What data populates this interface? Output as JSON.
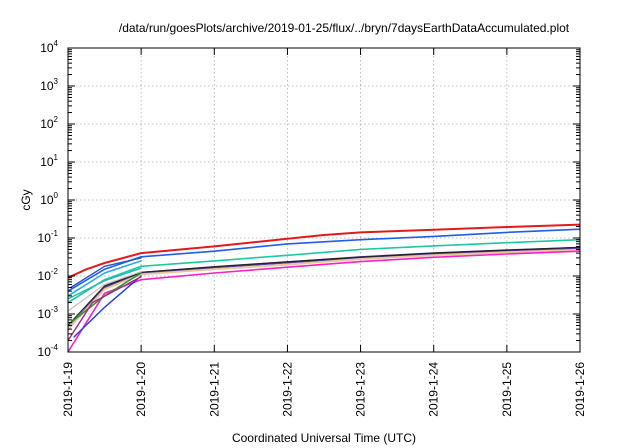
{
  "chart_data": {
    "type": "line",
    "title": "/data/run/goesPlots/archive/2019-01-25/flux/../bryn/7daysEarthDataAccumulated.plot",
    "xlabel": "Coordinated Universal Time (UTC)",
    "ylabel": "cGy",
    "y_scale": "log",
    "grid": true,
    "ylim": [
      0.0001,
      10000
    ],
    "y_ticks": [
      {
        "base": "10",
        "exp": "-4",
        "value": 0.0001
      },
      {
        "base": "10",
        "exp": "-3",
        "value": 0.001
      },
      {
        "base": "10",
        "exp": "-2",
        "value": 0.01
      },
      {
        "base": "10",
        "exp": "-1",
        "value": 0.1
      },
      {
        "base": "10",
        "exp": "0",
        "value": 1
      },
      {
        "base": "10",
        "exp": "1",
        "value": 10
      },
      {
        "base": "10",
        "exp": "2",
        "value": 100
      },
      {
        "base": "10",
        "exp": "3",
        "value": 1000
      },
      {
        "base": "10",
        "exp": "4",
        "value": 10000
      }
    ],
    "x_ticks": [
      "2019-1-19",
      "2019-1-20",
      "2019-1-21",
      "2019-1-22",
      "2019-1-23",
      "2019-1-24",
      "2019-1-25",
      "2019-1-26"
    ],
    "xlim": [
      "2019-01-19",
      "2019-01-26"
    ],
    "series": [
      {
        "color": "#e31a1c",
        "width": 2,
        "x": [
          "2019-01-19",
          "2019-01-19T06:00",
          "2019-01-19T12:00",
          "2019-01-20",
          "2019-01-21",
          "2019-01-22",
          "2019-01-22T12:00",
          "2019-01-23",
          "2019-01-24",
          "2019-01-25",
          "2019-01-26"
        ],
        "y": [
          0.009,
          0.015,
          0.022,
          0.04,
          0.06,
          0.095,
          0.12,
          0.14,
          0.165,
          0.195,
          0.225
        ]
      },
      {
        "color": "#1f5ee8",
        "width": 1.6,
        "x": [
          "2019-01-19",
          "2019-01-19T12:00",
          "2019-01-20",
          "2019-01-21",
          "2019-01-22",
          "2019-01-23",
          "2019-01-24",
          "2019-01-25",
          "2019-01-26"
        ],
        "y": [
          0.004,
          0.015,
          0.032,
          0.045,
          0.07,
          0.09,
          0.11,
          0.14,
          0.17
        ]
      },
      {
        "color": "#1ec8a0",
        "width": 1.6,
        "x": [
          "2019-01-19",
          "2019-01-19T12:00",
          "2019-01-20",
          "2019-01-21",
          "2019-01-22",
          "2019-01-23",
          "2019-01-24",
          "2019-01-25",
          "2019-01-26"
        ],
        "y": [
          0.002,
          0.008,
          0.018,
          0.025,
          0.035,
          0.05,
          0.062,
          0.075,
          0.09
        ]
      },
      {
        "color": "#5a3fa0",
        "width": 2.4,
        "x": [
          "2019-01-19",
          "2019-01-19T12:00",
          "2019-01-20",
          "2019-01-21",
          "2019-01-22",
          "2019-01-23",
          "2019-01-24",
          "2019-01-25",
          "2019-01-26"
        ],
        "y": [
          0.0004,
          0.005,
          0.012,
          0.017,
          0.023,
          0.031,
          0.039,
          0.047,
          0.055
        ]
      },
      {
        "color": "#222222",
        "width": 1.2,
        "x": [
          "2019-01-19",
          "2019-01-19T12:00",
          "2019-01-20",
          "2019-01-21",
          "2019-01-22",
          "2019-01-23",
          "2019-01-24",
          "2019-01-25",
          "2019-01-26"
        ],
        "y": [
          0.0005,
          0.0055,
          0.0125,
          0.0175,
          0.0235,
          0.0315,
          0.04,
          0.048,
          0.057
        ]
      },
      {
        "color": "#e8c8a0",
        "width": 2,
        "x": [
          "2019-01-19",
          "2019-01-19T12:00",
          "2019-01-20",
          "2019-01-21",
          "2019-01-22",
          "2019-01-23",
          "2019-01-24",
          "2019-01-25",
          "2019-01-26"
        ],
        "y": [
          0.0004,
          0.0045,
          0.011,
          0.015,
          0.02,
          0.028,
          0.035,
          0.042,
          0.049
        ]
      },
      {
        "color": "#ff1ecc",
        "width": 1.6,
        "x": [
          "2019-01-19",
          "2019-01-19T12:00",
          "2019-01-20",
          "2019-01-21",
          "2019-01-22",
          "2019-01-23",
          "2019-01-24",
          "2019-01-25",
          "2019-01-26"
        ],
        "y": [
          0.0001,
          0.0035,
          0.008,
          0.012,
          0.017,
          0.024,
          0.031,
          0.038,
          0.045
        ]
      },
      {
        "color": "#2a9a2a",
        "width": 1.6,
        "x": [
          "2019-01-19T01:00",
          "2019-01-19T12:00",
          "2019-01-20"
        ],
        "y": [
          0.0006,
          0.003,
          0.012
        ]
      },
      {
        "color": "#1f3fe0",
        "width": 1.4,
        "x": [
          "2019-01-19T02:00",
          "2019-01-19T12:00",
          "2019-01-20"
        ],
        "y": [
          0.00025,
          0.0015,
          0.01
        ]
      },
      {
        "color": "#28a8e8",
        "width": 1.6,
        "x": [
          "2019-01-19",
          "2019-01-19T12:00",
          "2019-01-20"
        ],
        "y": [
          0.003,
          0.012,
          0.025
        ]
      },
      {
        "color": "#1fb8b8",
        "width": 1.4,
        "x": [
          "2019-01-19",
          "2019-01-19T12:00",
          "2019-01-20"
        ],
        "y": [
          0.0025,
          0.0075,
          0.016
        ]
      },
      {
        "color": "#b0208a",
        "width": 1.4,
        "x": [
          "2019-01-19",
          "2019-01-19T08:00",
          "2019-01-20"
        ],
        "y": [
          0.0002,
          0.002,
          0.0095
        ]
      },
      {
        "color": "#c0c0c0",
        "width": 1.2,
        "x": [
          "2019-01-19",
          "2019-01-19T12:00",
          "2019-01-20"
        ],
        "y": [
          0.0012,
          0.006,
          0.013
        ]
      },
      {
        "color": "#2255cc",
        "width": 1.4,
        "x": [
          "2019-01-19T01:00",
          "2019-01-19T12:00",
          "2019-01-20"
        ],
        "y": [
          0.005,
          0.018,
          0.03
        ]
      }
    ]
  }
}
